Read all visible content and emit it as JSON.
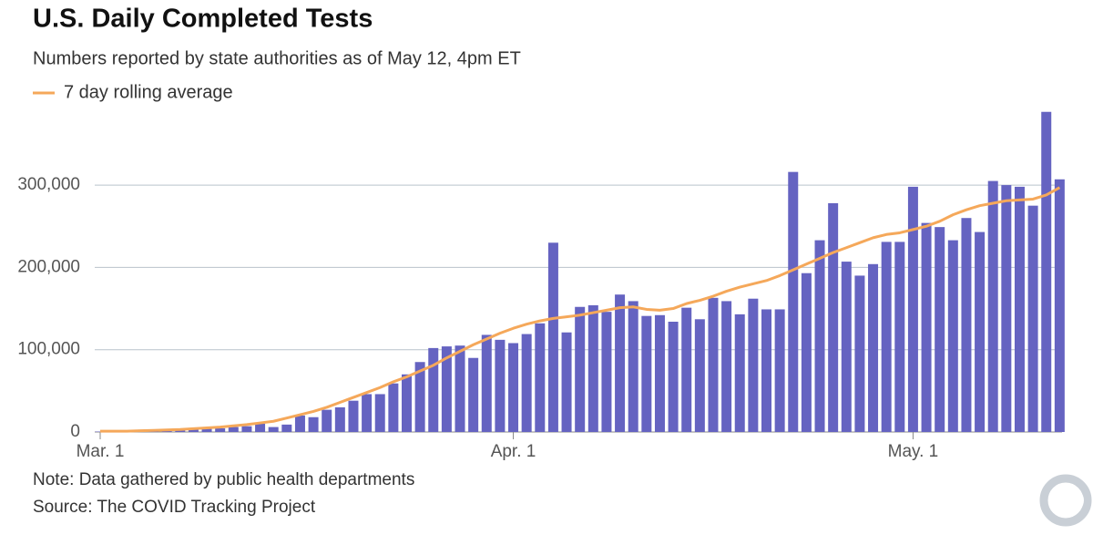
{
  "chart_data": {
    "type": "bar",
    "title": "U.S. Daily Completed Tests",
    "subtitle": "Numbers reported by state authorities as of May 12, 4pm ET",
    "note": "Note: Data gathered by public health departments",
    "source": "Source: The COVID Tracking Project",
    "categories": [
      "Mar. 1",
      null,
      null,
      null,
      null,
      null,
      null,
      null,
      null,
      null,
      null,
      null,
      null,
      null,
      null,
      null,
      null,
      null,
      null,
      null,
      null,
      null,
      null,
      null,
      null,
      null,
      null,
      null,
      null,
      null,
      null,
      "Apr. 1",
      null,
      null,
      null,
      null,
      null,
      null,
      null,
      null,
      null,
      null,
      null,
      null,
      null,
      null,
      null,
      null,
      null,
      null,
      null,
      null,
      null,
      null,
      null,
      null,
      null,
      null,
      null,
      null,
      null,
      "May. 1",
      null,
      null,
      null,
      null,
      null,
      null,
      null,
      null,
      null,
      null,
      null
    ],
    "series": [
      {
        "type": "bar",
        "color": "#6563c1",
        "values": [
          500,
          500,
          1000,
          1000,
          1500,
          2000,
          2500,
          3000,
          4000,
          4500,
          6000,
          7000,
          10000,
          6000,
          9000,
          20000,
          18000,
          27000,
          30000,
          38000,
          46000,
          46000,
          59000,
          70000,
          85000,
          102000,
          104000,
          105000,
          90000,
          118000,
          112000,
          108000,
          119000,
          132000,
          230000,
          121000,
          152000,
          154000,
          146000,
          167000,
          159000,
          141000,
          142000,
          134000,
          151000,
          137000,
          163000,
          159000,
          143000,
          162000,
          149000,
          149000,
          316000,
          193000,
          233000,
          278000,
          207000,
          190000,
          204000,
          231000,
          231000,
          298000,
          254000,
          249000,
          233000,
          260000,
          243000,
          305000,
          300000,
          298000,
          275000,
          389000,
          307000
        ]
      },
      {
        "type": "line",
        "name": "7 day rolling average",
        "color": "#f5a85a",
        "values": [
          1000,
          1000,
          1000,
          1500,
          2000,
          2500,
          3000,
          4000,
          5000,
          6000,
          7500,
          9000,
          11000,
          13000,
          17000,
          21000,
          25000,
          30000,
          36000,
          42000,
          48000,
          54000,
          61000,
          67000,
          74000,
          81000,
          90000,
          98000,
          106000,
          113000,
          120000,
          126000,
          131000,
          135000,
          138000,
          140000,
          142000,
          145000,
          148000,
          151000,
          152000,
          149000,
          148000,
          150000,
          156000,
          160000,
          165000,
          171000,
          176000,
          180000,
          184000,
          190000,
          197000,
          204000,
          211000,
          218000,
          224000,
          230000,
          236000,
          240000,
          242000,
          246000,
          250000,
          256000,
          264000,
          270000,
          275000,
          278000,
          281000,
          282000,
          283000,
          288000,
          297000
        ]
      }
    ],
    "ylim": [
      0,
      395000
    ],
    "yticks": [
      0,
      {
        "value": 100000,
        "label": "100,000"
      },
      {
        "value": 200000,
        "label": "200,000"
      },
      {
        "value": 300000,
        "label": "300,000"
      }
    ],
    "grid": true,
    "legend": "top-left"
  }
}
